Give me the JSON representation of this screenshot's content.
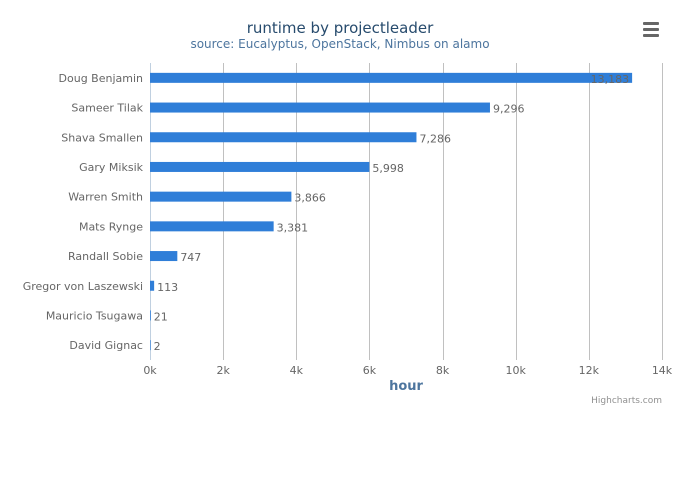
{
  "chart_data": {
    "type": "bar",
    "orientation": "horizontal",
    "title": "runtime by projectleader",
    "subtitle": "source: Eucalyptus, OpenStack, Nimbus on alamo",
    "xlabel": "hour",
    "ylabel": "",
    "categories": [
      "Doug Benjamin",
      "Sameer Tilak",
      "Shava Smallen",
      "Gary Miksik",
      "Warren Smith",
      "Mats Rynge",
      "Randall Sobie",
      "Gregor von Laszewski",
      "Mauricio Tsugawa",
      "David Gignac"
    ],
    "values": [
      13183,
      9296,
      7286,
      5998,
      3866,
      3381,
      747,
      113,
      21,
      2
    ],
    "data_labels": [
      "13,183",
      "9,296",
      "7,286",
      "5,998",
      "3,866",
      "3,381",
      "747",
      "113",
      "21",
      "2"
    ],
    "xlim": [
      0,
      14000
    ],
    "x_ticks": [
      0,
      2000,
      4000,
      6000,
      8000,
      10000,
      12000,
      14000
    ],
    "x_tick_labels": [
      "0k",
      "2k",
      "4k",
      "6k",
      "8k",
      "10k",
      "12k",
      "14k"
    ],
    "grid": true,
    "legend": "none",
    "bar_color": "#2f7ed8",
    "credits": "Highcharts.com"
  },
  "colors": {
    "title": "#274b6d",
    "subtitle": "#4d759e",
    "axis_title": "#4d759e",
    "label": "#666666",
    "grid": "#c0c0c0",
    "axis_line": "#c0d0e0"
  },
  "menu": {
    "icon": "hamburger-menu-icon"
  }
}
